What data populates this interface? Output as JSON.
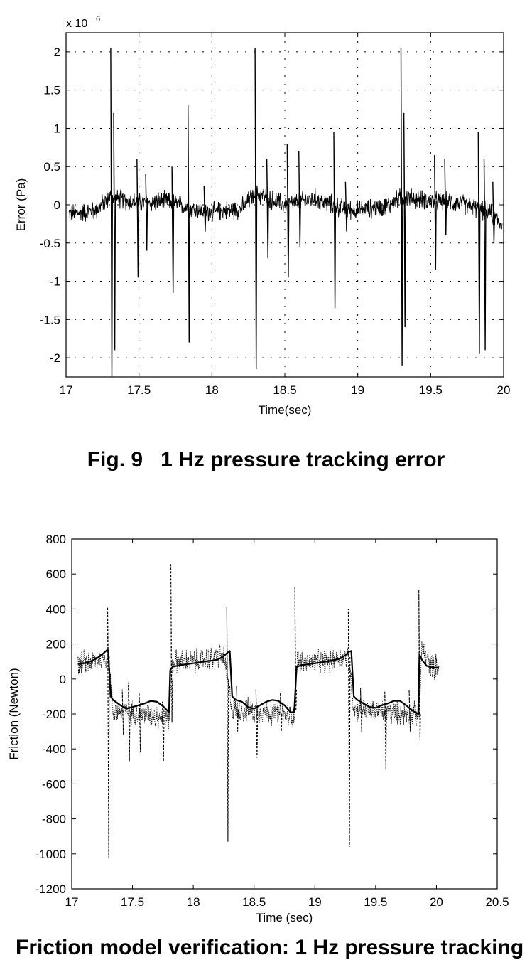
{
  "figure1": {
    "caption": "Fig. 9   1 Hz pressure tracking error",
    "chart_data": {
      "type": "line",
      "title": "",
      "xlabel": "Time(sec)",
      "ylabel": "Error (Pa)",
      "y_multiplier_label": "x 10",
      "y_multiplier_exponent": "6",
      "xlim": [
        17,
        20
      ],
      "ylim": [
        -2.25,
        2.25
      ],
      "x_ticks": [
        17,
        17.5,
        18,
        18.5,
        19,
        19.5,
        20
      ],
      "x_tick_labels": [
        "17",
        "17.5",
        "18",
        "18.5",
        "19",
        "19.5",
        "20"
      ],
      "y_ticks": [
        -2,
        -1.5,
        -1,
        -0.5,
        0,
        0.5,
        1,
        1.5,
        2
      ],
      "y_tick_labels": [
        "-2",
        "-1.5",
        "-1",
        "-0.5",
        "0",
        "0.5",
        "1",
        "1.5",
        "2"
      ],
      "grid": true,
      "series": [
        {
          "style": "solid",
          "x_range": [
            17.02,
            19.99
          ],
          "baseline": [
            [
              17.02,
              -0.12
            ],
            [
              17.2,
              -0.08
            ],
            [
              17.3,
              0.1
            ],
            [
              17.5,
              0.02
            ],
            [
              17.7,
              0.05
            ],
            [
              17.85,
              -0.05
            ],
            [
              18.0,
              -0.1
            ],
            [
              18.2,
              -0.05
            ],
            [
              18.3,
              0.15
            ],
            [
              18.5,
              0.0
            ],
            [
              18.7,
              0.08
            ],
            [
              18.9,
              -0.05
            ],
            [
              19.0,
              -0.07
            ],
            [
              19.2,
              -0.02
            ],
            [
              19.3,
              0.1
            ],
            [
              19.5,
              0.05
            ],
            [
              19.7,
              0.02
            ],
            [
              19.9,
              -0.1
            ],
            [
              19.99,
              -0.25
            ]
          ],
          "spikes": [
            [
              17.31,
              2.05,
              -2.25
            ],
            [
              17.33,
              1.2,
              -1.9
            ],
            [
              17.49,
              0.6,
              -0.95
            ],
            [
              17.55,
              0.4,
              -0.6
            ],
            [
              17.73,
              0.5,
              -1.15
            ],
            [
              17.84,
              1.3,
              -1.8
            ],
            [
              17.95,
              0.25,
              -0.35
            ],
            [
              18.3,
              2.05,
              -2.15
            ],
            [
              18.38,
              0.6,
              -0.7
            ],
            [
              18.52,
              0.8,
              -0.95
            ],
            [
              18.6,
              0.7,
              -0.55
            ],
            [
              18.84,
              0.95,
              -1.35
            ],
            [
              18.92,
              0.3,
              -0.35
            ],
            [
              19.3,
              2.05,
              -2.1
            ],
            [
              19.32,
              1.2,
              -1.6
            ],
            [
              19.53,
              0.65,
              -0.85
            ],
            [
              19.6,
              0.6,
              -0.4
            ],
            [
              19.83,
              0.95,
              -1.95
            ],
            [
              19.87,
              0.6,
              -1.9
            ],
            [
              19.93,
              0.3,
              -0.5
            ]
          ]
        }
      ]
    }
  },
  "figure2": {
    "caption": "Friction model verification: 1 Hz pressure tracking",
    "chart_data": {
      "type": "line",
      "title": "",
      "xlabel": "Time  (sec)",
      "ylabel": "Friction  (Newton)",
      "xlim": [
        17,
        20.5
      ],
      "ylim": [
        -1200,
        800
      ],
      "x_ticks": [
        17,
        17.5,
        18,
        18.5,
        19,
        19.5,
        20,
        20.5
      ],
      "x_tick_labels": [
        "17",
        "17.5",
        "18",
        "18.5",
        "19",
        "19.5",
        "20",
        "20.5"
      ],
      "y_ticks": [
        -1200,
        -1000,
        -800,
        -600,
        -400,
        -200,
        0,
        200,
        400,
        600,
        800
      ],
      "y_tick_labels": [
        "-1200",
        "-1000",
        "-800",
        "-600",
        "-400",
        "-200",
        "0",
        "200",
        "400",
        "600",
        "800"
      ],
      "grid": false,
      "series": [
        {
          "style": "solid",
          "x": [
            17.05,
            17.1,
            17.15,
            17.2,
            17.25,
            17.29,
            17.3,
            17.32,
            17.34,
            17.4,
            17.45,
            17.5,
            17.55,
            17.6,
            17.65,
            17.7,
            17.75,
            17.8,
            17.81,
            17.83,
            17.9,
            18.0,
            18.1,
            18.2,
            18.25,
            18.28,
            18.3,
            18.32,
            18.35,
            18.4,
            18.45,
            18.5,
            18.55,
            18.6,
            18.65,
            18.7,
            18.75,
            18.8,
            18.83,
            18.85,
            18.9,
            19.0,
            19.1,
            19.2,
            19.25,
            19.28,
            19.3,
            19.32,
            19.35,
            19.4,
            19.45,
            19.5,
            19.55,
            19.6,
            19.65,
            19.7,
            19.75,
            19.8,
            19.85,
            19.86,
            19.88,
            19.92,
            19.97,
            20.02
          ],
          "y": [
            85,
            90,
            100,
            115,
            140,
            165,
            165,
            -100,
            -120,
            -150,
            -170,
            -160,
            -150,
            -140,
            -125,
            -130,
            -155,
            -190,
            50,
            70,
            80,
            90,
            100,
            110,
            130,
            150,
            160,
            -100,
            -120,
            -130,
            -160,
            -170,
            -150,
            -130,
            -120,
            -125,
            -150,
            -190,
            -190,
            70,
            80,
            90,
            100,
            115,
            135,
            155,
            160,
            -100,
            -120,
            -140,
            -160,
            -165,
            -150,
            -140,
            -125,
            -125,
            -150,
            -180,
            -200,
            140,
            110,
            75,
            65,
            65
          ]
        },
        {
          "style": "dotted",
          "baseline": [
            [
              17.05,
              90
            ],
            [
              17.25,
              110
            ],
            [
              17.3,
              130
            ],
            [
              17.34,
              -180
            ],
            [
              17.6,
              -200
            ],
            [
              17.8,
              -220
            ],
            [
              17.83,
              100
            ],
            [
              18.0,
              100
            ],
            [
              18.25,
              130
            ],
            [
              18.32,
              -170
            ],
            [
              18.6,
              -190
            ],
            [
              18.83,
              -210
            ],
            [
              18.85,
              100
            ],
            [
              19.0,
              90
            ],
            [
              19.28,
              130
            ],
            [
              19.32,
              -170
            ],
            [
              19.6,
              -190
            ],
            [
              19.86,
              -200
            ],
            [
              19.88,
              180
            ],
            [
              19.95,
              80
            ],
            [
              20.02,
              70
            ]
          ],
          "spikes": [
            [
              17.3,
              410,
              -1020
            ],
            [
              17.42,
              -60,
              -320
            ],
            [
              17.47,
              -20,
              -470
            ],
            [
              17.56,
              -80,
              -420
            ],
            [
              17.75,
              -130,
              -470
            ],
            [
              17.82,
              660,
              -250
            ],
            [
              18.28,
              410,
              -930
            ],
            [
              18.36,
              -40,
              -300
            ],
            [
              18.52,
              -60,
              -450
            ],
            [
              18.72,
              -80,
              -300
            ],
            [
              18.84,
              530,
              -180
            ],
            [
              19.28,
              400,
              -960
            ],
            [
              19.38,
              -50,
              -300
            ],
            [
              19.58,
              -70,
              -520
            ],
            [
              19.78,
              -60,
              -300
            ],
            [
              19.86,
              510,
              -350
            ]
          ]
        }
      ]
    }
  }
}
